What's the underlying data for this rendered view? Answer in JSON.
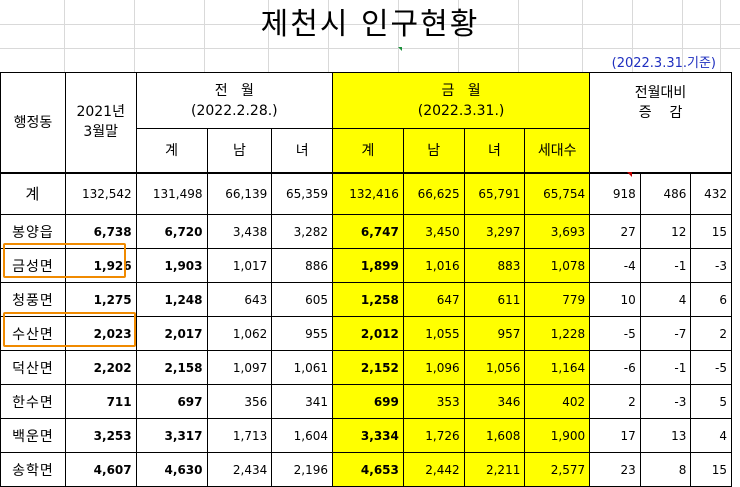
{
  "title": "제천시 인구현황",
  "basis_date": "(2022.3.31.기준)",
  "headers": {
    "district": "행정동",
    "base": "2021년\n3월말",
    "prev_month": "전   월",
    "prev_date": "(2022.2.28.)",
    "curr_month": "금   월",
    "curr_date": "(2022.3.31.)",
    "change": "전월대비\n증    감",
    "total": "계",
    "male": "남",
    "female": "녀",
    "households": "세대수"
  },
  "total_row": {
    "name": "계",
    "base": "132,542",
    "prev_total": "131,498",
    "prev_male": "66,139",
    "prev_female": "65,359",
    "curr_total": "132,416",
    "curr_male": "66,625",
    "curr_female": "65,791",
    "curr_households": "65,754",
    "chg_total": "918",
    "chg_male": "486",
    "chg_female": "432"
  },
  "rows": [
    {
      "name": "봉양읍",
      "base": "6,738",
      "prev_total": "6,720",
      "prev_male": "3,438",
      "prev_female": "3,282",
      "curr_total": "6,747",
      "curr_male": "3,450",
      "curr_female": "3,297",
      "curr_households": "3,693",
      "chg_total": "27",
      "chg_male": "12",
      "chg_female": "15"
    },
    {
      "name": "금성면",
      "base": "1,926",
      "prev_total": "1,903",
      "prev_male": "1,017",
      "prev_female": "886",
      "curr_total": "1,899",
      "curr_male": "1,016",
      "curr_female": "883",
      "curr_households": "1,078",
      "chg_total": "-4",
      "chg_male": "-1",
      "chg_female": "-3"
    },
    {
      "name": "청풍면",
      "base": "1,275",
      "prev_total": "1,248",
      "prev_male": "643",
      "prev_female": "605",
      "curr_total": "1,258",
      "curr_male": "647",
      "curr_female": "611",
      "curr_households": "779",
      "chg_total": "10",
      "chg_male": "4",
      "chg_female": "6"
    },
    {
      "name": "수산면",
      "base": "2,023",
      "prev_total": "2,017",
      "prev_male": "1,062",
      "prev_female": "955",
      "curr_total": "2,012",
      "curr_male": "1,055",
      "curr_female": "957",
      "curr_households": "1,228",
      "chg_total": "-5",
      "chg_male": "-7",
      "chg_female": "2"
    },
    {
      "name": "덕산면",
      "base": "2,202",
      "prev_total": "2,158",
      "prev_male": "1,097",
      "prev_female": "1,061",
      "curr_total": "2,152",
      "curr_male": "1,096",
      "curr_female": "1,056",
      "curr_households": "1,164",
      "chg_total": "-6",
      "chg_male": "-1",
      "chg_female": "-5"
    },
    {
      "name": "한수면",
      "base": "711",
      "prev_total": "697",
      "prev_male": "356",
      "prev_female": "341",
      "curr_total": "699",
      "curr_male": "353",
      "curr_female": "346",
      "curr_households": "402",
      "chg_total": "2",
      "chg_male": "-3",
      "chg_female": "5"
    },
    {
      "name": "백운면",
      "base": "3,253",
      "prev_total": "3,317",
      "prev_male": "1,713",
      "prev_female": "1,604",
      "curr_total": "3,334",
      "curr_male": "1,726",
      "curr_female": "1,608",
      "curr_households": "1,900",
      "chg_total": "17",
      "chg_male": "13",
      "chg_female": "4"
    },
    {
      "name": "송학면",
      "base": "4,607",
      "prev_total": "4,630",
      "prev_male": "2,434",
      "prev_female": "2,196",
      "curr_total": "4,653",
      "curr_male": "2,442",
      "curr_female": "2,211",
      "curr_households": "2,577",
      "chg_total": "23",
      "chg_male": "8",
      "chg_female": "15"
    }
  ],
  "colors": {
    "highlight": "#ffff00",
    "basis_text": "#1f2fbf",
    "outline_box": "#f08a00"
  }
}
